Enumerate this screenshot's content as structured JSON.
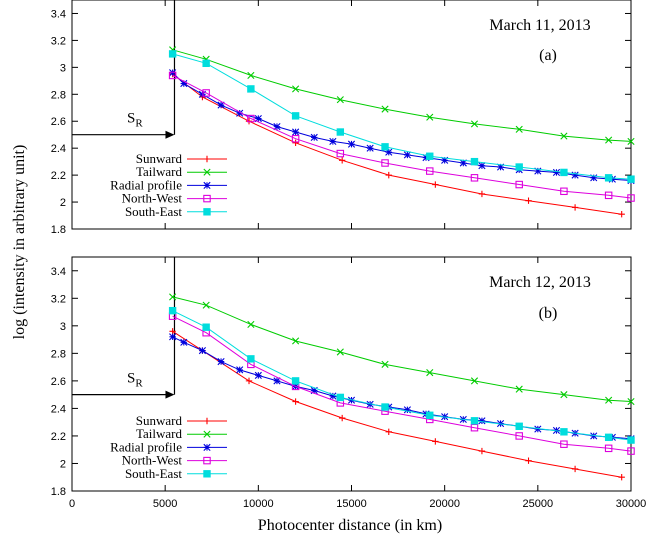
{
  "figure": {
    "ylabel": "log (intensity in arbitrary unit)",
    "xlabel": "Photocenter distance (in km)"
  },
  "chart_data": [
    {
      "type": "line",
      "panel": "(a)",
      "date": "March 11, 2013",
      "marker_label": "S",
      "marker_sub": "R",
      "marker_x": 5500,
      "marker_y": 2.5,
      "xlim": [
        0,
        30000
      ],
      "ylim": [
        1.8,
        3.5
      ],
      "xticks": [
        0,
        5000,
        10000,
        15000,
        20000,
        25000,
        30000
      ],
      "xtick_labels": [
        "",
        "",
        "",
        "",
        "",
        "",
        ""
      ],
      "yticks": [
        1.8,
        2,
        2.2,
        2.4,
        2.6,
        2.8,
        3,
        3.2,
        3.4
      ],
      "ytick_labels": [
        "1.8",
        "2",
        "2.2",
        "2.4",
        "2.6",
        "2.8",
        "3",
        "3.2",
        "3.4"
      ],
      "legend": "bottom-left",
      "series": [
        {
          "name": "Sunward",
          "color": "#ff0000",
          "marker": "plus",
          "x": [
            5400,
            7000,
            9500,
            12000,
            14500,
            17000,
            19500,
            22000,
            24500,
            27000,
            29500
          ],
          "y": [
            2.95,
            2.78,
            2.6,
            2.44,
            2.31,
            2.2,
            2.13,
            2.06,
            2.01,
            1.96,
            1.91
          ]
        },
        {
          "name": "Tailward",
          "color": "#00cc00",
          "marker": "x",
          "x": [
            5400,
            7200,
            9600,
            12000,
            14400,
            16800,
            19200,
            21600,
            24000,
            26400,
            28800,
            30000
          ],
          "y": [
            3.13,
            3.06,
            2.94,
            2.84,
            2.76,
            2.69,
            2.63,
            2.58,
            2.54,
            2.49,
            2.46,
            2.45
          ]
        },
        {
          "name": "Radial profile",
          "color": "#0000dd",
          "marker": "star",
          "x": [
            5400,
            6000,
            7000,
            8000,
            9000,
            10000,
            11000,
            12000,
            13000,
            14000,
            15000,
            16000,
            17000,
            18000,
            19000,
            20000,
            21000,
            22000,
            23000,
            24000,
            25000,
            26000,
            27000,
            28000,
            29000,
            30000
          ],
          "y": [
            2.96,
            2.88,
            2.8,
            2.72,
            2.66,
            2.62,
            2.56,
            2.52,
            2.48,
            2.45,
            2.43,
            2.4,
            2.37,
            2.35,
            2.33,
            2.31,
            2.29,
            2.27,
            2.26,
            2.24,
            2.23,
            2.22,
            2.2,
            2.18,
            2.17,
            2.16
          ]
        },
        {
          "name": "North-West",
          "color": "#dd00dd",
          "marker": "square-open",
          "x": [
            5400,
            7200,
            9600,
            12000,
            14400,
            16800,
            19200,
            21600,
            24000,
            26400,
            28800,
            30000
          ],
          "y": [
            2.94,
            2.81,
            2.62,
            2.47,
            2.36,
            2.29,
            2.23,
            2.18,
            2.13,
            2.08,
            2.05,
            2.03
          ]
        },
        {
          "name": "South-East",
          "color": "#00dddd",
          "marker": "square-filled",
          "x": [
            5400,
            7200,
            9600,
            12000,
            14400,
            16800,
            19200,
            21600,
            24000,
            26400,
            28800,
            30000
          ],
          "y": [
            3.1,
            3.03,
            2.84,
            2.64,
            2.52,
            2.41,
            2.34,
            2.3,
            2.26,
            2.22,
            2.18,
            2.17
          ]
        }
      ]
    },
    {
      "type": "line",
      "panel": "(b)",
      "date": "March 12, 2013",
      "marker_label": "S",
      "marker_sub": "R",
      "marker_x": 5500,
      "marker_y": 2.5,
      "xlim": [
        0,
        30000
      ],
      "ylim": [
        1.8,
        3.5
      ],
      "xticks": [
        0,
        5000,
        10000,
        15000,
        20000,
        25000,
        30000
      ],
      "xtick_labels": [
        "0",
        "5000",
        "10000",
        "15000",
        "20000",
        "25000",
        "30000"
      ],
      "yticks": [
        1.8,
        2,
        2.2,
        2.4,
        2.6,
        2.8,
        3,
        3.2,
        3.4
      ],
      "ytick_labels": [
        "1.8",
        "2",
        "2.2",
        "2.4",
        "2.6",
        "2.8",
        "3",
        "3.2",
        "3.4"
      ],
      "legend": "bottom-left",
      "series": [
        {
          "name": "Sunward",
          "color": "#ff0000",
          "marker": "plus",
          "x": [
            5400,
            7000,
            9500,
            12000,
            14500,
            17000,
            19500,
            22000,
            24500,
            27000,
            29500
          ],
          "y": [
            2.96,
            2.82,
            2.6,
            2.45,
            2.33,
            2.23,
            2.16,
            2.09,
            2.02,
            1.96,
            1.9
          ]
        },
        {
          "name": "Tailward",
          "color": "#00cc00",
          "marker": "x",
          "x": [
            5400,
            7200,
            9600,
            12000,
            14400,
            16800,
            19200,
            21600,
            24000,
            26400,
            28800,
            30000
          ],
          "y": [
            3.21,
            3.15,
            3.01,
            2.89,
            2.81,
            2.72,
            2.66,
            2.6,
            2.54,
            2.5,
            2.46,
            2.45
          ]
        },
        {
          "name": "Radial profile",
          "color": "#0000dd",
          "marker": "star",
          "x": [
            5400,
            6000,
            7000,
            8000,
            9000,
            10000,
            11000,
            12000,
            13000,
            14000,
            15000,
            16000,
            17000,
            18000,
            19000,
            20000,
            21000,
            22000,
            23000,
            24000,
            25000,
            26000,
            27000,
            28000,
            29000,
            30000
          ],
          "y": [
            2.92,
            2.88,
            2.82,
            2.74,
            2.68,
            2.64,
            2.6,
            2.56,
            2.53,
            2.49,
            2.46,
            2.43,
            2.41,
            2.39,
            2.36,
            2.34,
            2.32,
            2.31,
            2.29,
            2.27,
            2.25,
            2.24,
            2.22,
            2.2,
            2.19,
            2.18
          ]
        },
        {
          "name": "North-West",
          "color": "#dd00dd",
          "marker": "square-open",
          "x": [
            5400,
            7200,
            9600,
            12000,
            14400,
            16800,
            19200,
            21600,
            24000,
            26400,
            28800,
            30000
          ],
          "y": [
            3.07,
            2.95,
            2.72,
            2.56,
            2.44,
            2.38,
            2.32,
            2.26,
            2.2,
            2.14,
            2.11,
            2.09
          ]
        },
        {
          "name": "South-East",
          "color": "#00dddd",
          "marker": "square-filled",
          "x": [
            5400,
            7200,
            9600,
            12000,
            14400,
            16800,
            19200,
            21600,
            24000,
            26400,
            28800,
            30000
          ],
          "y": [
            3.11,
            2.99,
            2.76,
            2.6,
            2.48,
            2.41,
            2.35,
            2.31,
            2.27,
            2.23,
            2.19,
            2.17
          ]
        }
      ]
    }
  ]
}
